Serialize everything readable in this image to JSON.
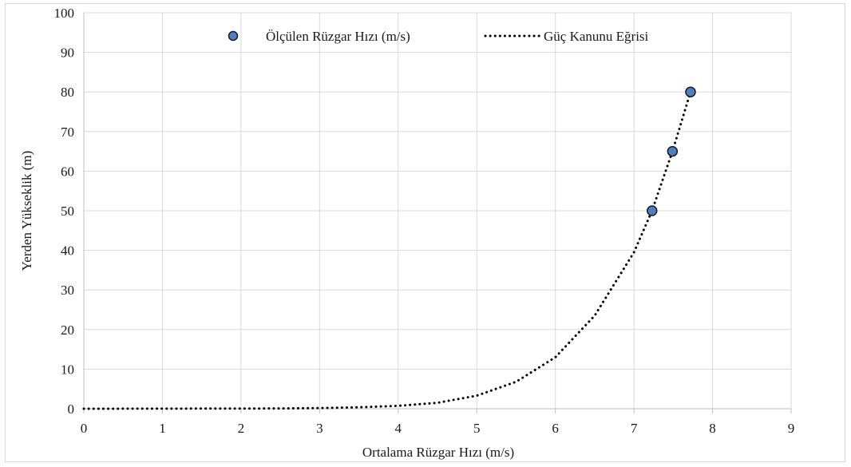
{
  "chart_data": {
    "type": "scatter",
    "title": "",
    "xlabel": "Ortalama Rüzgar Hızı (m/s)",
    "ylabel": "Yerden Yükseklik (m)",
    "xlim": [
      0,
      9
    ],
    "ylim": [
      0,
      100
    ],
    "x_ticks": [
      0,
      1,
      2,
      3,
      4,
      5,
      6,
      7,
      8,
      9
    ],
    "y_ticks": [
      0,
      10,
      20,
      30,
      40,
      50,
      60,
      70,
      80,
      90,
      100
    ],
    "grid": true,
    "legend_position": "top-center",
    "series": [
      {
        "name": "Ölçülen Rüzgar Hızı (m/s)",
        "kind": "scatter",
        "color": "#4f7fc0",
        "points": [
          {
            "x": 7.23,
            "y": 50
          },
          {
            "x": 7.49,
            "y": 65
          },
          {
            "x": 7.72,
            "y": 80
          }
        ]
      },
      {
        "name": "Güç Kanunu Eğrisi",
        "kind": "dotted-line",
        "color": "#000000",
        "points": [
          {
            "x": 0,
            "y": 0
          },
          {
            "x": 2.5,
            "y": 0.07
          },
          {
            "x": 3.0,
            "y": 0.17
          },
          {
            "x": 3.5,
            "y": 0.37
          },
          {
            "x": 4.0,
            "y": 0.73
          },
          {
            "x": 4.5,
            "y": 1.5
          },
          {
            "x": 5.0,
            "y": 3.3
          },
          {
            "x": 5.5,
            "y": 6.8
          },
          {
            "x": 6.0,
            "y": 13.0
          },
          {
            "x": 6.5,
            "y": 23.5
          },
          {
            "x": 7.0,
            "y": 39.5
          },
          {
            "x": 7.23,
            "y": 50
          },
          {
            "x": 7.49,
            "y": 65
          },
          {
            "x": 7.72,
            "y": 80
          }
        ]
      }
    ]
  }
}
